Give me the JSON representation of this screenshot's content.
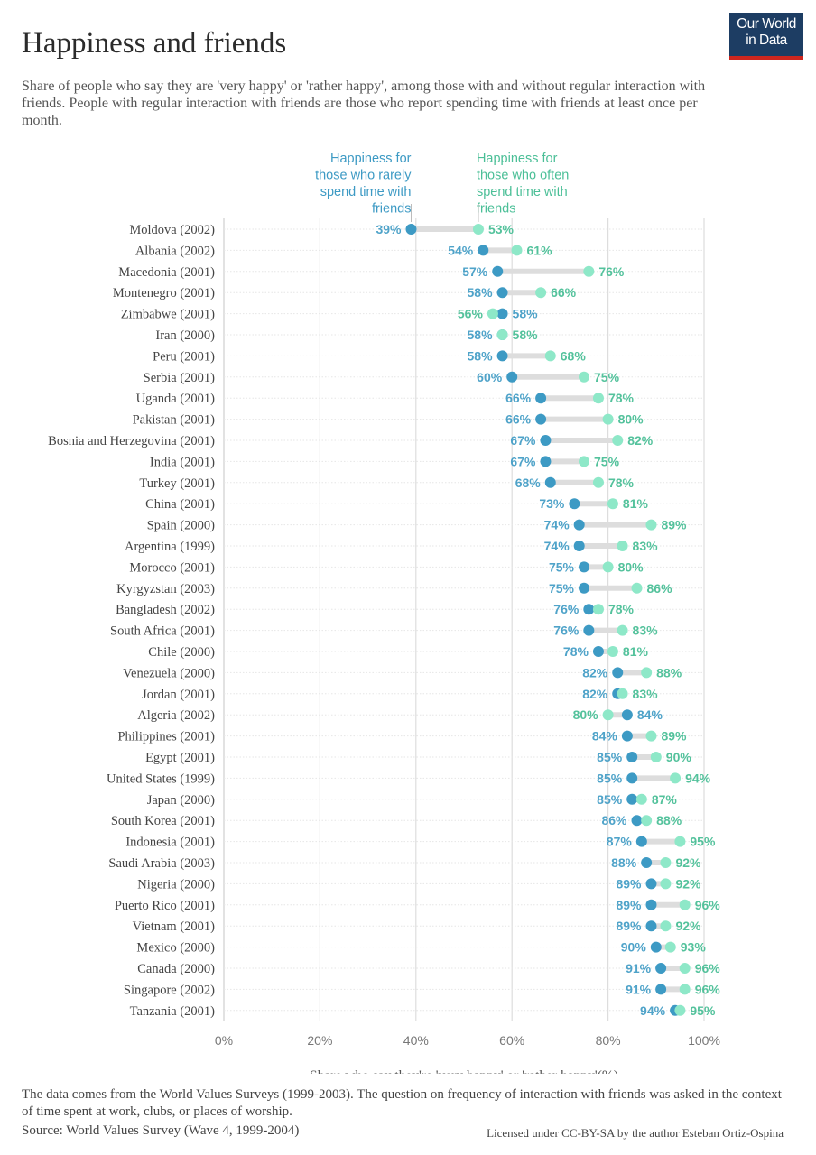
{
  "header": {
    "title": "Happiness and friends",
    "subtitle": "Share of people who say they are 'very happy' or 'rather happy', among those with and without regular interaction with friends. People with regular interaction with friends are those who report spending time with friends at least once per month.",
    "logo_line1": "Our World",
    "logo_line2": "in Data"
  },
  "footer": {
    "note": "The data comes from the World Values Surveys (1999-2003). The question on frequency of interaction with friends was asked in the context of time spent at work, clubs, or places of worship.",
    "source": "Source: World Values Survey (Wave 4, 1999-2004)",
    "license": "Licensed under CC-BY-SA by the author Esteban Ortiz-Ospina"
  },
  "colors": {
    "rarely": "#3d9ac4",
    "often": "#8ee8c8",
    "rarely_label": "#3d9ac4",
    "often_label": "#4bbf97",
    "connector": "#dddddd",
    "grid": "#dddddd",
    "axis_text": "#777777"
  },
  "chart_data": {
    "type": "dumbbell",
    "xlabel": "Share who say they're 'very happy' or 'rather happy'(%)",
    "xlim": [
      0,
      100
    ],
    "xticks": [
      "0%",
      "20%",
      "40%",
      "60%",
      "80%",
      "100%"
    ],
    "grid": "vertical",
    "series": [
      {
        "key": "rarely",
        "name": "Happiness for those who rarely spend time with friends",
        "name_lines": [
          "Happiness for",
          "those who rarely",
          "spend time with",
          "friends"
        ]
      },
      {
        "key": "often",
        "name": "Happiness for those who often spend time with friends",
        "name_lines": [
          "Happiness for",
          "those who often",
          "spend time with",
          "friends"
        ]
      }
    ],
    "rows": [
      {
        "country": "Moldova (2002)",
        "rarely": 39,
        "often": 53
      },
      {
        "country": "Albania (2002)",
        "rarely": 54,
        "often": 61
      },
      {
        "country": "Macedonia (2001)",
        "rarely": 57,
        "often": 76
      },
      {
        "country": "Montenegro (2001)",
        "rarely": 58,
        "often": 66
      },
      {
        "country": "Zimbabwe (2001)",
        "rarely": 58,
        "often": 56
      },
      {
        "country": "Iran (2000)",
        "rarely": 58,
        "often": 58
      },
      {
        "country": "Peru (2001)",
        "rarely": 58,
        "often": 68
      },
      {
        "country": "Serbia (2001)",
        "rarely": 60,
        "often": 75
      },
      {
        "country": "Uganda (2001)",
        "rarely": 66,
        "often": 78
      },
      {
        "country": "Pakistan (2001)",
        "rarely": 66,
        "often": 80
      },
      {
        "country": "Bosnia and Herzegovina (2001)",
        "rarely": 67,
        "often": 82
      },
      {
        "country": "India (2001)",
        "rarely": 67,
        "often": 75
      },
      {
        "country": "Turkey (2001)",
        "rarely": 68,
        "often": 78
      },
      {
        "country": "China (2001)",
        "rarely": 73,
        "often": 81
      },
      {
        "country": "Spain (2000)",
        "rarely": 74,
        "often": 89
      },
      {
        "country": "Argentina (1999)",
        "rarely": 74,
        "often": 83
      },
      {
        "country": "Morocco (2001)",
        "rarely": 75,
        "often": 80
      },
      {
        "country": "Kyrgyzstan (2003)",
        "rarely": 75,
        "often": 86
      },
      {
        "country": "Bangladesh (2002)",
        "rarely": 76,
        "often": 78
      },
      {
        "country": "South Africa (2001)",
        "rarely": 76,
        "often": 83
      },
      {
        "country": "Chile (2000)",
        "rarely": 78,
        "often": 81
      },
      {
        "country": "Venezuela (2000)",
        "rarely": 82,
        "often": 88
      },
      {
        "country": "Jordan (2001)",
        "rarely": 82,
        "often": 83
      },
      {
        "country": "Algeria (2002)",
        "rarely": 84,
        "often": 80
      },
      {
        "country": "Philippines (2001)",
        "rarely": 84,
        "often": 89
      },
      {
        "country": "Egypt (2001)",
        "rarely": 85,
        "often": 90
      },
      {
        "country": "United States (1999)",
        "rarely": 85,
        "often": 94
      },
      {
        "country": "Japan (2000)",
        "rarely": 85,
        "often": 87
      },
      {
        "country": "South Korea (2001)",
        "rarely": 86,
        "often": 88
      },
      {
        "country": "Indonesia (2001)",
        "rarely": 87,
        "often": 95
      },
      {
        "country": "Saudi Arabia (2003)",
        "rarely": 88,
        "often": 92
      },
      {
        "country": "Nigeria (2000)",
        "rarely": 89,
        "often": 92
      },
      {
        "country": "Puerto Rico (2001)",
        "rarely": 89,
        "often": 96
      },
      {
        "country": "Vietnam (2001)",
        "rarely": 89,
        "often": 92
      },
      {
        "country": "Mexico (2000)",
        "rarely": 90,
        "often": 93
      },
      {
        "country": "Canada (2000)",
        "rarely": 91,
        "often": 96
      },
      {
        "country": "Singapore (2002)",
        "rarely": 91,
        "often": 96
      },
      {
        "country": "Tanzania (2001)",
        "rarely": 94,
        "often": 95
      }
    ]
  }
}
